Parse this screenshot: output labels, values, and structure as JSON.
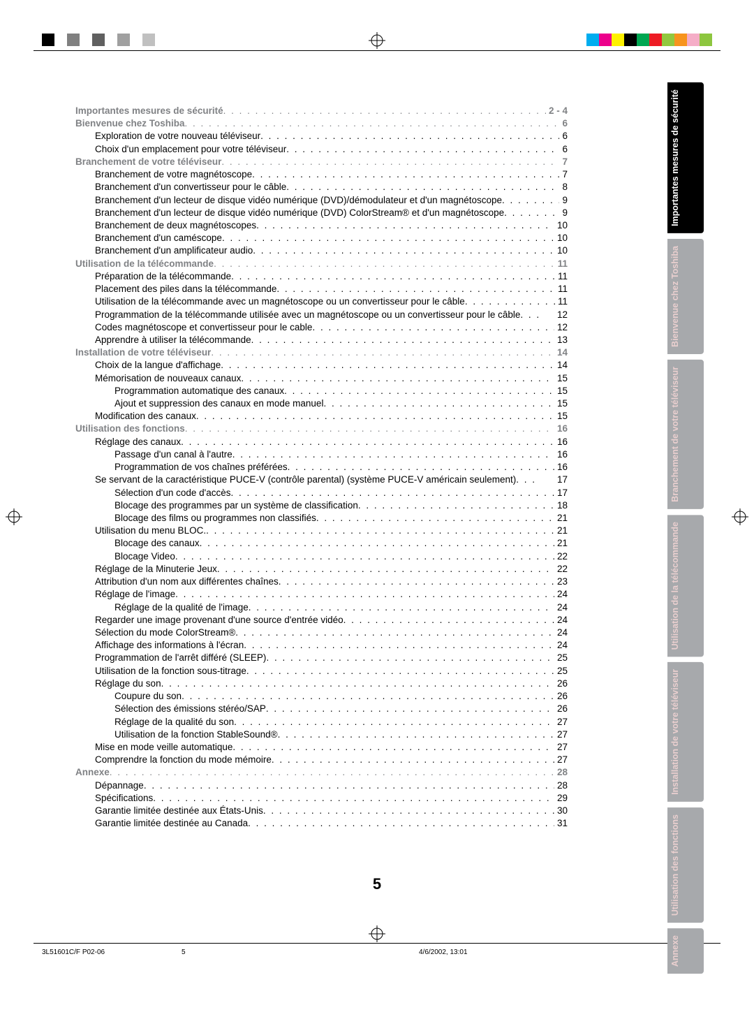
{
  "page_number": "5",
  "footer": {
    "left": "3L51601C/F P02-06",
    "mid": "5",
    "right": "4/6/2002, 13:01"
  },
  "colorbar_left": [
    "#000000",
    "#ffffff",
    "#808080",
    "#ffffff",
    "#606060",
    "#ffffff",
    "#a0a0a0",
    "#ffffff",
    "#c0c0c0",
    "#ffffff"
  ],
  "colorbar_right": [
    "#00adef",
    "#ec008c",
    "#fff200",
    "#000000",
    "#00a651",
    "#ed1c24",
    "#92c83e",
    "#f7941d",
    "#f5adc7",
    "#8dc63f"
  ],
  "tabs": [
    {
      "label": "Importantes\nmesures de\nsécurité",
      "bg": "#000000",
      "active": true
    },
    {
      "label": "Bienvenue\nchez Toshiba",
      "bg": "#a7a9ac",
      "active": false
    },
    {
      "label": "Branchement de\nvotre téléviseur",
      "bg": "#a7a9ac",
      "active": false
    },
    {
      "label": "Utilisation de la\ntélécommande",
      "bg": "#a7a9ac",
      "active": false
    },
    {
      "label": "Installation de\nvotre téléviseur",
      "bg": "#a7a9ac",
      "active": false
    },
    {
      "label": "Utilisation des\nfonctions",
      "bg": "#a7a9ac",
      "active": false
    },
    {
      "label": "Annexe",
      "bg": "#a7a9ac",
      "active": false
    }
  ],
  "toc": [
    {
      "level": "section",
      "label": "Importantes mesures de sécurité",
      "page": "2 - 4"
    },
    {
      "level": "section",
      "label": "Bienvenue chez Toshiba",
      "page": "6"
    },
    {
      "level": "sub1",
      "label": "Exploration de votre nouveau téléviseur",
      "page": "6"
    },
    {
      "level": "sub1",
      "label": "Choix d'un emplacement pour votre téléviseur",
      "page": "6"
    },
    {
      "level": "section",
      "label": "Branchement de votre téléviseur",
      "page": "7"
    },
    {
      "level": "sub1",
      "label": "Branchement de votre magnétoscope",
      "page": "7"
    },
    {
      "level": "sub1",
      "label": "Branchement d'un convertisseur pour le câble",
      "page": "8"
    },
    {
      "level": "sub1",
      "label": "Branchement d'un lecteur de disque vidéo numérique (DVD)/démodulateur et d'un magnétoscope",
      "page": "9"
    },
    {
      "level": "sub1",
      "label": "Branchement d'un lecteur de disque vidéo numérique (DVD) ColorStream® et d'un magnétoscope",
      "page": "9"
    },
    {
      "level": "sub1",
      "label": "Branchement de deux magnétoscopes",
      "page": "10"
    },
    {
      "level": "sub1",
      "label": "Branchement d'un caméscope",
      "page": "10"
    },
    {
      "level": "sub1",
      "label": "Branchement d'un amplificateur audio",
      "page": "10"
    },
    {
      "level": "section",
      "label": "Utilisation de la télécommande",
      "page": "11"
    },
    {
      "level": "sub1",
      "label": "Préparation de la télécommande",
      "page": "11"
    },
    {
      "level": "sub1",
      "label": "Placement des piles dans la télécommande",
      "page": "11"
    },
    {
      "level": "sub1",
      "label": "Utilisation de la télécommande avec un magnétoscope ou un convertisseur pour le câble",
      "page": "11"
    },
    {
      "level": "sub1",
      "label": "Programmation de la télécommande utilisée avec un magnétoscope ou un convertisseur pour le câble",
      "page": "12"
    },
    {
      "level": "sub1",
      "label": "Codes magnétoscope et convertisseur pour le cable",
      "page": "12"
    },
    {
      "level": "sub1",
      "label": "Apprendre à utiliser la télécommande",
      "page": "13"
    },
    {
      "level": "section",
      "label": "Installation de votre téléviseur",
      "page": "14"
    },
    {
      "level": "sub1",
      "label": "Choix de la langue d'affichage",
      "page": "14"
    },
    {
      "level": "sub1",
      "label": "Mémorisation de nouveaux canaux",
      "page": "15"
    },
    {
      "level": "sub2",
      "label": "Programmation automatique des canaux",
      "page": "15"
    },
    {
      "level": "sub2",
      "label": "Ajout et suppression des canaux en mode manuel",
      "page": "15"
    },
    {
      "level": "sub1",
      "label": "Modification des canaux",
      "page": "15"
    },
    {
      "level": "section",
      "label": "Utilisation des fonctions",
      "page": "16"
    },
    {
      "level": "sub1",
      "label": "Réglage des canaux",
      "page": "16"
    },
    {
      "level": "sub2",
      "label": "Passage d'un canal à l'autre",
      "page": "16"
    },
    {
      "level": "sub2",
      "label": "Programmation de vos chaînes préférées",
      "page": "16"
    },
    {
      "level": "sub1",
      "label": "Se servant de la caractéristique PUCE-V (contrôle parental) (système PUCE-V américain seulement)",
      "page": "17"
    },
    {
      "level": "sub2",
      "label": "Sélection d'un code d'accès",
      "page": "17"
    },
    {
      "level": "sub2",
      "label": "Blocage des programmes par un système de classification",
      "page": "18"
    },
    {
      "level": "sub2",
      "label": "Blocage des films ou programmes non classifiés",
      "page": "21"
    },
    {
      "level": "sub1",
      "label": "Utilisation du menu BLOC.",
      "page": "21"
    },
    {
      "level": "sub2",
      "label": "Blocage des canaux",
      "page": "21"
    },
    {
      "level": "sub2",
      "label": "Blocage Video",
      "page": "22"
    },
    {
      "level": "sub1",
      "label": "Réglage de la Minuterie Jeux",
      "page": "22"
    },
    {
      "level": "sub1",
      "label": "Attribution d'un nom aux différentes chaînes",
      "page": "23"
    },
    {
      "level": "sub1",
      "label": "Réglage de l'image",
      "page": "24"
    },
    {
      "level": "sub2",
      "label": "Réglage de la qualité de l'image",
      "page": "24"
    },
    {
      "level": "sub1",
      "label": "Regarder une image provenant d'une source d'entrée vidéo",
      "page": "24"
    },
    {
      "level": "sub1",
      "label": "Sélection du mode ColorStream®",
      "page": "24"
    },
    {
      "level": "sub1",
      "label": "Affichage des informations à l'écran",
      "page": "24"
    },
    {
      "level": "sub1",
      "label": "Programmation de l'arrêt différé (SLEEP)",
      "page": "25"
    },
    {
      "level": "sub1",
      "label": "Utilisation de la fonction sous-titrage",
      "page": "25"
    },
    {
      "level": "sub1",
      "label": "Réglage du son",
      "page": "26"
    },
    {
      "level": "sub2",
      "label": "Coupure du son",
      "page": "26"
    },
    {
      "level": "sub2",
      "label": "Sélection des émissions stéréo/SAP",
      "page": "26"
    },
    {
      "level": "sub2",
      "label": "Réglage de la qualité du son",
      "page": "27"
    },
    {
      "level": "sub2",
      "label": "Utilisation de la fonction StableSound®",
      "page": "27"
    },
    {
      "level": "sub1",
      "label": "Mise en mode veille automatique",
      "page": "27"
    },
    {
      "level": "sub1",
      "label": "Comprendre la fonction du mode mémoire",
      "page": "27"
    },
    {
      "level": "section",
      "label": "Annexe",
      "page": "28"
    },
    {
      "level": "sub1",
      "label": "Dépannage",
      "page": "28"
    },
    {
      "level": "sub1",
      "label": "Spécifications",
      "page": "29"
    },
    {
      "level": "sub1",
      "label": "Garantie limitée destinée aux États-Unis",
      "page": "30"
    },
    {
      "level": "sub1",
      "label": "Garantie limitée destinée au Canada",
      "page": "31"
    }
  ]
}
